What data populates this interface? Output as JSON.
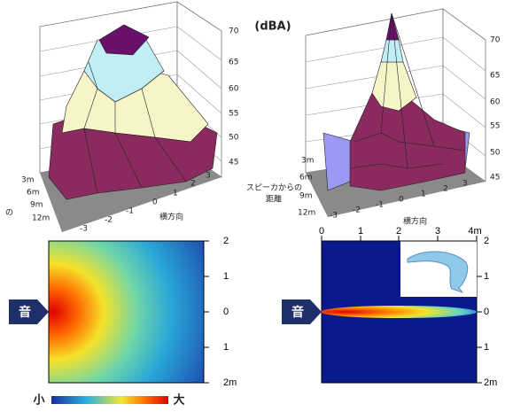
{
  "unit": "(dBA)",
  "surface_left": {
    "z_ticks": [
      "70",
      "65",
      "60",
      "55",
      "50",
      "45"
    ],
    "depth_ticks": [
      "3m",
      "6m",
      "9m",
      "12m"
    ],
    "lateral_ticks": [
      "-3",
      "-2",
      "-1",
      "0",
      "1",
      "2",
      "3"
    ],
    "lateral_label": "横方向",
    "depth_label_fragment": "の"
  },
  "surface_right": {
    "z_ticks": [
      "70",
      "65",
      "60",
      "55",
      "50",
      "45"
    ],
    "depth_label": [
      "スピーカからの",
      "距離"
    ],
    "depth_ticks": [
      "3m",
      "6m",
      "9m",
      "12m"
    ],
    "lateral_ticks": [
      "-3",
      "-2",
      "-1",
      "0",
      "1",
      "2",
      "3"
    ],
    "lateral_label": "横方向"
  },
  "heatmap_left": {
    "source": "音",
    "y_ticks": [
      "2",
      "1",
      "0",
      "1",
      "2m"
    ]
  },
  "heatmap_right": {
    "source": "音",
    "x_ticks": [
      "0",
      "1",
      "2",
      "3",
      "4m"
    ],
    "y_ticks": [
      "2",
      "1",
      "0",
      "1",
      "2m"
    ]
  },
  "colorbar": {
    "min_label": "小",
    "max_label": "大"
  }
}
